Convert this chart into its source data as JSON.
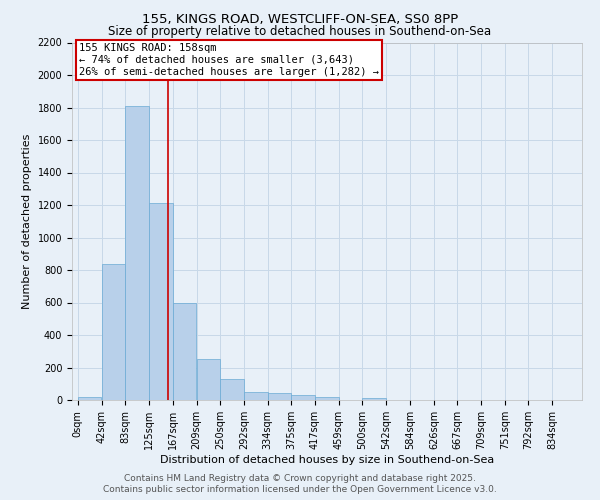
{
  "title1": "155, KINGS ROAD, WESTCLIFF-ON-SEA, SS0 8PP",
  "title2": "Size of property relative to detached houses in Southend-on-Sea",
  "xlabel": "Distribution of detached houses by size in Southend-on-Sea",
  "ylabel": "Number of detached properties",
  "bar_color": "#b8d0ea",
  "bar_edge_color": "#6aaad4",
  "annotation_box_color": "#cc0000",
  "annotation_line_color": "#cc0000",
  "annotation_title": "155 KINGS ROAD: 158sqm",
  "annotation_line1": "← 74% of detached houses are smaller (3,643)",
  "annotation_line2": "26% of semi-detached houses are larger (1,282) →",
  "property_size": 158,
  "x_labels": [
    "0sqm",
    "42sqm",
    "83sqm",
    "125sqm",
    "167sqm",
    "209sqm",
    "250sqm",
    "292sqm",
    "334sqm",
    "375sqm",
    "417sqm",
    "459sqm",
    "500sqm",
    "542sqm",
    "584sqm",
    "626sqm",
    "667sqm",
    "709sqm",
    "751sqm",
    "792sqm",
    "834sqm"
  ],
  "bin_starts": [
    0,
    42,
    83,
    125,
    167,
    209,
    250,
    292,
    334,
    375,
    417,
    459,
    500,
    542,
    584,
    626,
    667,
    709,
    751,
    792,
    834
  ],
  "bar_heights": [
    20,
    840,
    1810,
    1210,
    600,
    255,
    130,
    50,
    45,
    30,
    20,
    0,
    15,
    0,
    0,
    0,
    0,
    0,
    0,
    0,
    0
  ],
  "ylim": [
    0,
    2200
  ],
  "yticks": [
    0,
    200,
    400,
    600,
    800,
    1000,
    1200,
    1400,
    1600,
    1800,
    2000,
    2200
  ],
  "grid_color": "#c8d8e8",
  "background_color": "#e8f0f8",
  "footer1": "Contains HM Land Registry data © Crown copyright and database right 2025.",
  "footer2": "Contains public sector information licensed under the Open Government Licence v3.0.",
  "title_fontsize": 9.5,
  "subtitle_fontsize": 8.5,
  "axis_label_fontsize": 8,
  "tick_fontsize": 7,
  "annotation_fontsize": 7.5,
  "footer_fontsize": 6.5
}
